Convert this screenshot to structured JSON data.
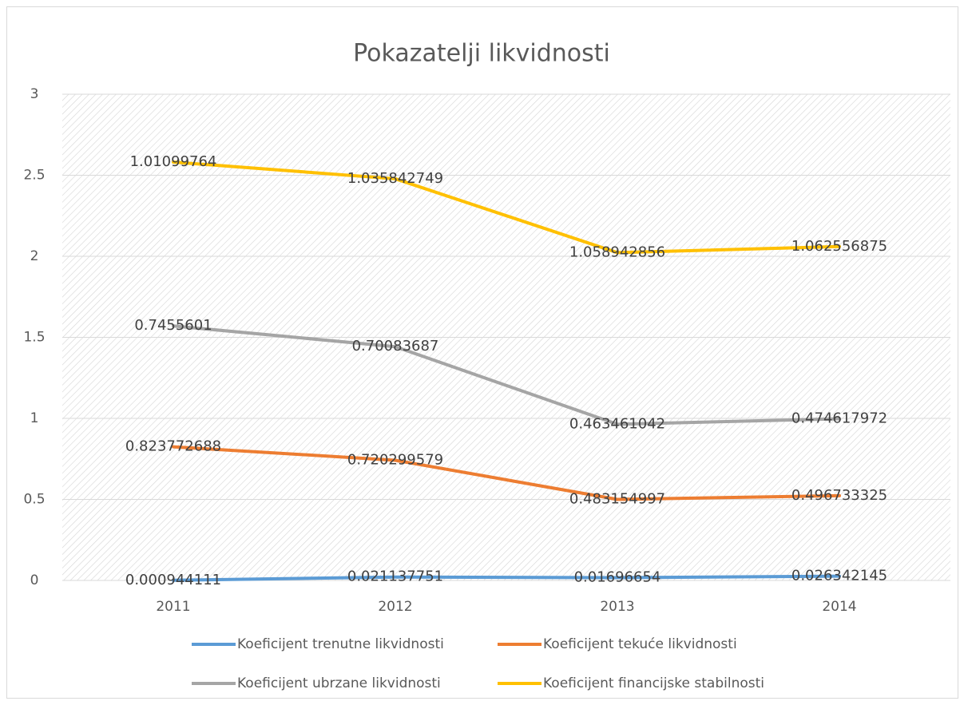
{
  "chart_data": {
    "type": "line",
    "stacked": true,
    "title": "Pokazatelji likvidnosti",
    "categories": [
      "2011",
      "2012",
      "2013",
      "2014"
    ],
    "series": [
      {
        "name": "Koeficijent trenutne likvidnosti",
        "color": "#5b9bd5",
        "values": [
          0.000944111,
          0.021137751,
          0.01696654,
          0.026342145
        ]
      },
      {
        "name": "Koeficijent tekuće likvidnosti",
        "color": "#ed7d31",
        "values": [
          0.823772688,
          0.720299579,
          0.483154997,
          0.496733325
        ]
      },
      {
        "name": "Koeficijent ubrzane likvidnosti",
        "color": "#a5a5a5",
        "values": [
          0.7455601,
          0.70083687,
          0.463461042,
          0.474617972
        ]
      },
      {
        "name": "Koeficijent financijske stabilnosti",
        "color": "#ffc000",
        "values": [
          1.01099764,
          1.035842749,
          1.058942856,
          1.062556875
        ]
      }
    ],
    "ylim": [
      0,
      3
    ],
    "yticks": [
      0,
      0.5,
      1,
      1.5,
      2,
      2.5,
      3
    ],
    "grid": true,
    "legend": "bottom"
  }
}
